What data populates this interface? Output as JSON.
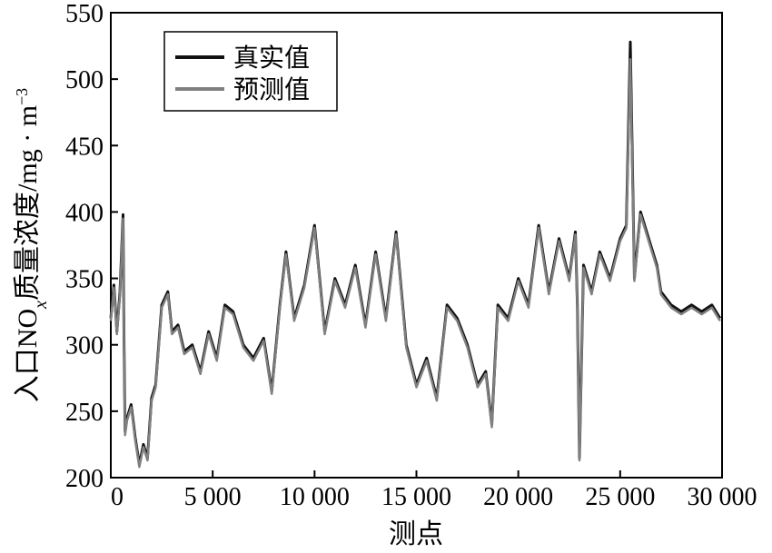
{
  "chart_data": {
    "type": "line",
    "xlabel": "测点",
    "ylabel": "入口NOx质量浓度/mg·m−3",
    "ylabel_parts": {
      "prefix": "入口NO",
      "subscript": "x",
      "suffix": "质量浓度/mg · m",
      "superscript": "−3"
    },
    "xlim": [
      0,
      30000
    ],
    "ylim": [
      200,
      550
    ],
    "xticks": [
      0,
      5000,
      10000,
      15000,
      20000,
      25000,
      30000
    ],
    "xtick_labels": [
      "0",
      "5 000",
      "10 000",
      "15 000",
      "20 000",
      "25 000",
      "30 000"
    ],
    "yticks": [
      200,
      250,
      300,
      350,
      400,
      450,
      500,
      550
    ],
    "ytick_labels": [
      "200",
      "250",
      "300",
      "350",
      "400",
      "450",
      "500",
      "550"
    ],
    "grid": false,
    "legend_position": "top-left",
    "x": [
      0,
      150,
      300,
      450,
      600,
      650,
      700,
      800,
      1000,
      1200,
      1400,
      1600,
      1800,
      2000,
      2200,
      2500,
      2800,
      3000,
      3300,
      3600,
      4000,
      4400,
      4800,
      5200,
      5600,
      6000,
      6500,
      7000,
      7500,
      7900,
      8300,
      8600,
      9000,
      9500,
      10000,
      10500,
      11000,
      11500,
      12000,
      12500,
      13000,
      13500,
      14000,
      14500,
      15000,
      15500,
      16000,
      16500,
      17000,
      17500,
      18000,
      18400,
      18700,
      19000,
      19500,
      20000,
      20500,
      21000,
      21500,
      22000,
      22500,
      22800,
      22900,
      23000,
      23200,
      23600,
      24000,
      24500,
      25000,
      25300,
      25500,
      25700,
      26000,
      26400,
      26800,
      27000,
      27500,
      28000,
      28500,
      29000,
      29500,
      29900
    ],
    "series": [
      {
        "name": "真实值",
        "color": "#111111",
        "values": [
          320,
          345,
          310,
          340,
          398,
          300,
          235,
          245,
          255,
          230,
          210,
          225,
          215,
          260,
          270,
          330,
          340,
          310,
          315,
          295,
          300,
          280,
          310,
          290,
          330,
          325,
          300,
          290,
          305,
          265,
          330,
          370,
          320,
          345,
          390,
          310,
          350,
          330,
          360,
          315,
          370,
          320,
          385,
          300,
          270,
          290,
          260,
          330,
          320,
          300,
          270,
          280,
          240,
          330,
          320,
          350,
          330,
          390,
          340,
          380,
          350,
          385,
          330,
          215,
          360,
          340,
          370,
          350,
          380,
          390,
          528,
          350,
          400,
          380,
          360,
          340,
          330,
          325,
          330,
          325,
          330,
          320
        ]
      },
      {
        "name": "预测值",
        "color": "#808080",
        "values": [
          318,
          343,
          308,
          338,
          395,
          298,
          232,
          243,
          253,
          228,
          208,
          223,
          213,
          258,
          268,
          328,
          338,
          308,
          313,
          293,
          298,
          278,
          308,
          288,
          328,
          323,
          298,
          288,
          303,
          263,
          328,
          368,
          318,
          343,
          388,
          308,
          348,
          328,
          358,
          313,
          368,
          318,
          383,
          298,
          268,
          288,
          258,
          328,
          318,
          298,
          268,
          278,
          238,
          328,
          318,
          348,
          328,
          388,
          338,
          378,
          348,
          383,
          328,
          213,
          358,
          338,
          368,
          348,
          378,
          388,
          515,
          348,
          398,
          378,
          358,
          338,
          328,
          323,
          328,
          323,
          328,
          318
        ]
      }
    ]
  }
}
